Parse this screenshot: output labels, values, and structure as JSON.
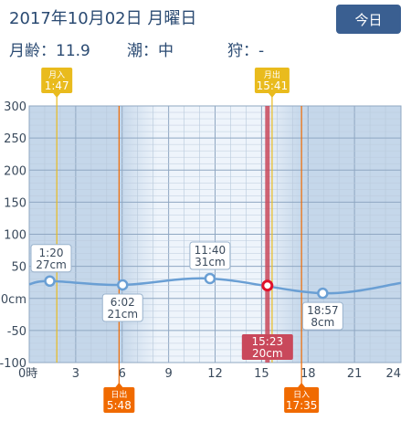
{
  "header": {
    "date": "2017年10月02日 月曜日",
    "today_label": "今日"
  },
  "info": {
    "moon_age_label": "月齢：",
    "moon_age": "11.9",
    "tide_label": "潮：",
    "tide": "中",
    "hunt_label": "狩：",
    "hunt": "-"
  },
  "chart_data": {
    "type": "line",
    "x": [
      0,
      1.33,
      6.03,
      11.67,
      18.95,
      24
    ],
    "y": [
      22,
      27,
      21,
      31,
      8,
      24
    ],
    "xlim": [
      0,
      24
    ],
    "ylim": [
      -100,
      300
    ],
    "x_ticks": [
      "0時",
      "3",
      "6",
      "9",
      "12",
      "15",
      "18",
      "21",
      "24"
    ],
    "y_ticks": [
      "300",
      "250",
      "200",
      "150",
      "100",
      "50",
      "0cm",
      "-50",
      "-100"
    ],
    "extrema": [
      {
        "time": "1:20",
        "x": 1.33,
        "level": "27cm",
        "y": 27
      },
      {
        "time": "6:02",
        "x": 6.03,
        "level": "21cm",
        "y": 21
      },
      {
        "time": "11:40",
        "x": 11.67,
        "level": "31cm",
        "y": 31
      },
      {
        "time": "18:57",
        "x": 18.95,
        "level": "8cm",
        "y": 8
      }
    ],
    "current": {
      "time": "15:23",
      "x": 15.38,
      "level": "20cm",
      "y": 20
    },
    "events": [
      {
        "label": "月入",
        "time": "1:47",
        "x": 1.78,
        "kind": "moon"
      },
      {
        "label": "月出",
        "time": "15:41",
        "x": 15.68,
        "kind": "moon"
      },
      {
        "label": "日出",
        "time": "5:48",
        "x": 5.8,
        "kind": "sun"
      },
      {
        "label": "日入",
        "time": "17:35",
        "x": 17.58,
        "kind": "sun"
      }
    ],
    "colors": {
      "tide_line": "#6a9fd4",
      "moon": "#e9bb1d",
      "sun": "#f06a00",
      "current": "#c9485b",
      "night": "#c5d7ea",
      "day": "#eef4fb"
    }
  }
}
